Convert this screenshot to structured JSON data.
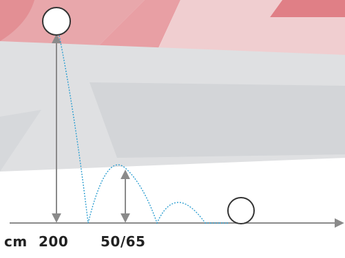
{
  "labels": {
    "unit": "cm",
    "drop_height": "200",
    "bounce_height": "50/65"
  },
  "colors": {
    "background": "#ffffff",
    "band_red": "#e8a7ab",
    "band_red_strong": "#e07f86",
    "band_grey": "#dfe0e2",
    "band_grey_dark": "#cfd2d6",
    "axis": "#8a8a8a",
    "trajectory": "#2f9fd1",
    "ball_fill": "#ffffff",
    "ball_stroke": "#333333",
    "text": "#222222"
  },
  "icons": [
    "ball-icon",
    "measure-arrow-icon",
    "axis-arrow-icon"
  ]
}
